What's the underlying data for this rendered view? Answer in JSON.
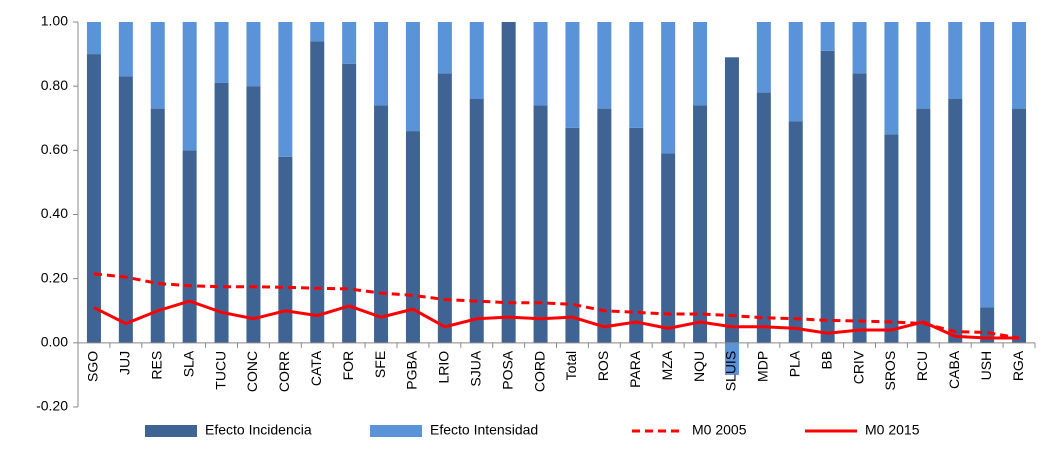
{
  "chart_data": {
    "type": "bar",
    "categories": [
      "SGO",
      "JUJ",
      "RES",
      "SLA",
      "TUCU",
      "CONC",
      "CORR",
      "CATA",
      "FOR",
      "SFE",
      "PGBA",
      "LRIO",
      "SJUA",
      "POSA",
      "CORD",
      "Total",
      "ROS",
      "PARA",
      "MZA",
      "NQU",
      "SLUIS",
      "MDP",
      "PLA",
      "BB",
      "CRIV",
      "SROS",
      "RCU",
      "CABA",
      "USH",
      "RGA"
    ],
    "series": [
      {
        "name": "Efecto Incidencia",
        "type": "bar",
        "color": "#3f6494",
        "values": [
          0.9,
          0.83,
          0.73,
          0.6,
          0.81,
          0.8,
          0.58,
          0.94,
          0.87,
          0.74,
          0.66,
          0.84,
          0.76,
          1.0,
          0.74,
          0.67,
          0.73,
          0.67,
          0.59,
          0.74,
          0.89,
          0.78,
          0.69,
          0.91,
          0.84,
          0.65,
          0.73,
          0.76,
          0.11,
          0.73
        ]
      },
      {
        "name": "Efecto Intensidad",
        "type": "bar",
        "color": "#5b93d8",
        "values": [
          0.1,
          0.17,
          0.27,
          0.4,
          0.19,
          0.2,
          0.42,
          0.06,
          0.13,
          0.26,
          0.34,
          0.16,
          0.24,
          0.0,
          0.26,
          0.33,
          0.27,
          0.33,
          0.41,
          0.26,
          -0.1,
          0.22,
          0.31,
          0.09,
          0.16,
          0.35,
          0.27,
          0.24,
          0.89,
          0.27
        ]
      },
      {
        "name": "M0 2005",
        "type": "line",
        "dashed": true,
        "color": "#ff0000",
        "values": [
          0.215,
          0.205,
          0.185,
          0.178,
          0.175,
          0.175,
          0.173,
          0.17,
          0.168,
          0.155,
          0.148,
          0.135,
          0.13,
          0.125,
          0.125,
          0.12,
          0.1,
          0.095,
          0.09,
          0.09,
          0.085,
          0.078,
          0.075,
          0.07,
          0.068,
          0.065,
          0.06,
          0.035,
          0.032,
          0.015
        ]
      },
      {
        "name": "M0 2015",
        "type": "line",
        "dashed": false,
        "color": "#ff0000",
        "values": [
          0.11,
          0.06,
          0.1,
          0.13,
          0.095,
          0.075,
          0.1,
          0.085,
          0.115,
          0.08,
          0.105,
          0.05,
          0.075,
          0.08,
          0.075,
          0.08,
          0.05,
          0.065,
          0.045,
          0.065,
          0.05,
          0.05,
          0.045,
          0.03,
          0.04,
          0.04,
          0.065,
          0.02,
          0.015,
          0.015
        ]
      }
    ],
    "ylim": [
      -0.2,
      1.0
    ],
    "yticks": [
      {
        "value": -0.2,
        "label": "-0.20"
      },
      {
        "value": 0,
        "label": "0.00"
      },
      {
        "value": 0.2,
        "label": "0.20"
      },
      {
        "value": 0.4,
        "label": "0.40"
      },
      {
        "value": 0.6,
        "label": "0.60"
      },
      {
        "value": 0.8,
        "label": "0.80"
      },
      {
        "value": 1.0,
        "label": "1.00"
      }
    ],
    "grid": false,
    "legend": "bottom"
  }
}
